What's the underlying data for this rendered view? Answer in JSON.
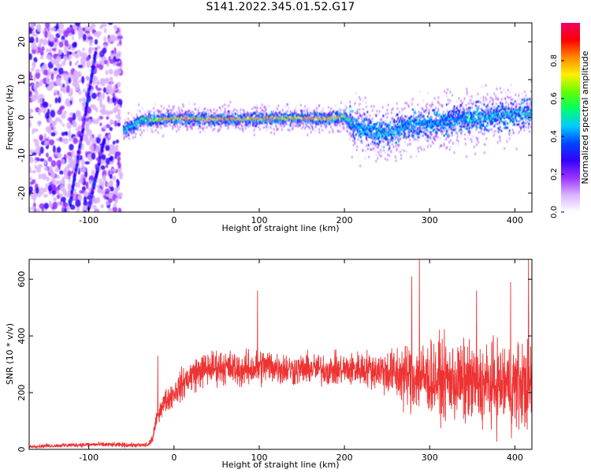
{
  "title": "S141.2022.345.01.52.G17",
  "colors": {
    "snr_line": "#ee3333",
    "axis": "#000000",
    "spectrogram_noise": "#8833ee",
    "spectrogram_palette": [
      "#ffffff",
      "#d9b3ff",
      "#9933ff",
      "#3300ff",
      "#0044ff",
      "#00ccff",
      "#00ff66",
      "#66ff00",
      "#ffee00",
      "#ff8800",
      "#ff0000",
      "#ee0066"
    ]
  },
  "chart_data": [
    {
      "type": "heatmap",
      "title": "",
      "xlabel": "Height of straight line (km)",
      "ylabel": "Frequency (Hz)",
      "xlim": [
        -170,
        420
      ],
      "ylim": [
        -25,
        25
      ],
      "xticks": [
        -100,
        0,
        100,
        200,
        300,
        400
      ],
      "yticks": [
        -20,
        -10,
        0,
        10,
        20
      ],
      "colorbar": {
        "label": "Normalized spectral amplitude",
        "range": [
          0,
          1
        ],
        "ticks": [
          0.0,
          0.2,
          0.4,
          0.6,
          0.8
        ]
      },
      "regions": [
        {
          "x": [
            -170,
            -62
          ],
          "description_value": "noise",
          "freq_spread": [
            -25,
            25
          ]
        },
        {
          "x": [
            -62,
            205
          ],
          "center_freq": 0
        },
        {
          "x": [
            205,
            420
          ],
          "center_freq": 0
        }
      ],
      "ridge": {
        "x": [
          -60,
          -50,
          -40,
          -20,
          0,
          20,
          40,
          60,
          80,
          100,
          120,
          140,
          160,
          180,
          200,
          210,
          230,
          250,
          270,
          290,
          310,
          330,
          350,
          370,
          390,
          410,
          420
        ],
        "freq": [
          -3,
          -2,
          -0.5,
          -0.3,
          0,
          0,
          -0.2,
          0,
          -0.3,
          0,
          0,
          0.2,
          0,
          0,
          0.5,
          -2,
          -3,
          -4,
          -2,
          -1.5,
          -1,
          -0.5,
          0,
          0.5,
          1,
          1.5,
          1.5
        ],
        "amplitude": [
          0.45,
          0.5,
          0.6,
          0.75,
          0.8,
          0.85,
          0.8,
          0.85,
          0.8,
          0.85,
          0.8,
          0.8,
          0.85,
          0.8,
          0.7,
          0.45,
          0.45,
          0.5,
          0.45,
          0.45,
          0.45,
          0.45,
          0.5,
          0.5,
          0.5,
          0.5,
          0.5
        ]
      },
      "streaks": [
        {
          "x": [
            -122,
            -92
          ],
          "freq": [
            -23,
            17
          ]
        },
        {
          "x": [
            -100,
            -82
          ],
          "freq": [
            -24,
            -6
          ]
        }
      ]
    },
    {
      "type": "line",
      "title": "",
      "xlabel": "Height of straight line (km)",
      "ylabel": "SNR (10 * v/v)",
      "xlim": [
        -170,
        420
      ],
      "ylim": [
        0,
        670
      ],
      "xticks": [
        -100,
        0,
        100,
        200,
        300,
        400
      ],
      "yticks": [
        0,
        200,
        400,
        600
      ],
      "series": [
        {
          "x": [
            -170,
            -150,
            -130,
            -110,
            -90,
            -70,
            -50,
            -40,
            -30,
            -25,
            -20,
            -15,
            -10,
            0,
            10,
            20,
            30,
            40,
            50,
            60,
            70,
            80,
            90,
            100,
            110,
            120,
            140,
            160,
            180,
            200,
            220,
            240,
            260,
            270,
            280,
            300,
            320,
            340,
            360,
            380,
            400,
            420
          ],
          "values": [
            10,
            12,
            14,
            16,
            17,
            16,
            15,
            14,
            16,
            40,
            110,
            150,
            170,
            200,
            230,
            260,
            275,
            285,
            290,
            290,
            285,
            280,
            285,
            290,
            295,
            290,
            280,
            285,
            280,
            280,
            285,
            280,
            265,
            260,
            260,
            250,
            245,
            235,
            225,
            230,
            225,
            230
          ],
          "noise_amplitude": [
            8,
            10,
            10,
            12,
            12,
            12,
            12,
            12,
            15,
            25,
            40,
            50,
            60,
            70,
            80,
            90,
            90,
            90,
            90,
            90,
            90,
            90,
            90,
            100,
            90,
            90,
            80,
            80,
            80,
            85,
            90,
            100,
            140,
            170,
            180,
            190,
            200,
            210,
            210,
            220,
            230,
            230
          ],
          "spikes": [
            {
              "x": -19,
              "value": 330
            },
            {
              "x": 98,
              "value": 560
            },
            {
              "x": 279,
              "value": 610
            },
            {
              "x": 288,
              "value": 670
            },
            {
              "x": 355,
              "value": 560
            },
            {
              "x": 395,
              "value": 590
            },
            {
              "x": 416,
              "value": 670
            }
          ]
        }
      ]
    }
  ]
}
